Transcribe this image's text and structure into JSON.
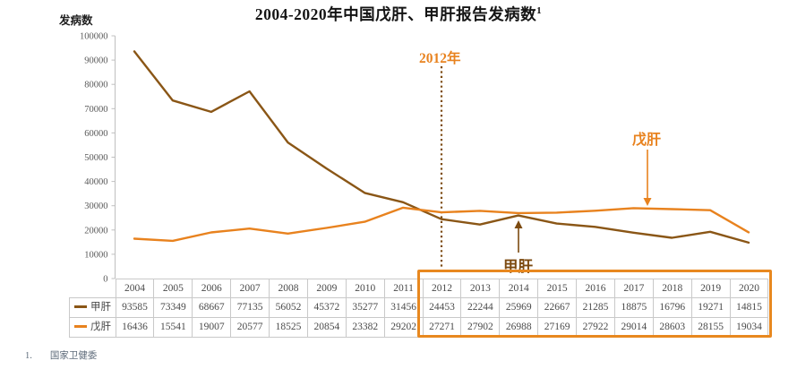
{
  "title": {
    "text": "2004-2020年中国戊肝、甲肝报告发病数",
    "superscript": "1"
  },
  "y_axis_label": "发病数",
  "annotations": {
    "year_marker": "2012年",
    "hep_e_callout": "戊肝",
    "hep_a_callout": "甲肝"
  },
  "footnote": {
    "marker": "1.",
    "text": "国家卫健委"
  },
  "colors": {
    "hep_a_line": "#8a5616",
    "hep_e_line": "#e8821e",
    "annotation_orange": "#e8821e",
    "annotation_brown": "#7c4a10",
    "highlight_border": "#e8881f",
    "axis_line": "#bfbfbf",
    "table_border": "#c9c9c9",
    "table_text": "#4a4a4a",
    "footnote_text": "#5e6b7a"
  },
  "chart_data": {
    "type": "line",
    "title": "2004-2020年中国戊肝、甲肝报告发病数",
    "ylabel": "发病数",
    "categories": [
      2004,
      2005,
      2006,
      2007,
      2008,
      2009,
      2010,
      2011,
      2012,
      2013,
      2014,
      2015,
      2016,
      2017,
      2018,
      2019,
      2020
    ],
    "series": [
      {
        "name": "甲肝",
        "color": "#8a5616",
        "values": [
          93585,
          73349,
          68667,
          77135,
          56052,
          45372,
          35277,
          31456,
          24453,
          22244,
          25969,
          22667,
          21285,
          18875,
          16796,
          19271,
          14815
        ]
      },
      {
        "name": "戊肝",
        "color": "#e8821e",
        "values": [
          16436,
          15541,
          19007,
          20577,
          18525,
          20854,
          23382,
          29202,
          27271,
          27902,
          26988,
          27169,
          27922,
          29014,
          28603,
          28155,
          19034
        ]
      }
    ],
    "ylim": [
      0,
      100000
    ],
    "y_ticks": [
      0,
      10000,
      20000,
      30000,
      40000,
      50000,
      60000,
      70000,
      80000,
      90000,
      100000
    ],
    "gridlines": false,
    "legend_position": "left-of-data-table",
    "data_table_shown": true,
    "highlight_range": [
      2012,
      2020
    ]
  }
}
